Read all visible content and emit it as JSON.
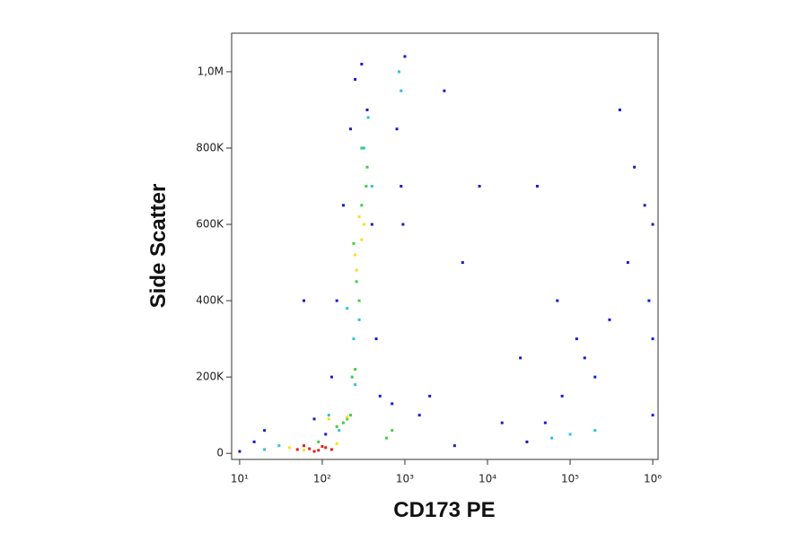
{
  "chart_data": {
    "type": "scatter",
    "x_label": "CD173 PE",
    "y_label": "Side Scatter",
    "xlog": true,
    "xlim": [
      8,
      1160000
    ],
    "ylim": [
      -16000,
      1101000
    ],
    "xticks": [
      {
        "value": 10,
        "label": "10¹"
      },
      {
        "value": 100,
        "label": "10²"
      },
      {
        "value": 1000,
        "label": "10³"
      },
      {
        "value": 10000,
        "label": "10⁴"
      },
      {
        "value": 100000,
        "label": "10⁵"
      },
      {
        "value": 1000000,
        "label": "10⁶"
      }
    ],
    "yticks": [
      0,
      {
        "value": 200000,
        "label": "200K"
      },
      {
        "value": 400000,
        "label": "400K"
      },
      {
        "value": 600000,
        "label": "600K"
      },
      {
        "value": 800000,
        "label": "800K"
      },
      {
        "value": 1000000,
        "label": "1,0M"
      }
    ],
    "series": [
      {
        "color": "#1a1ad0",
        "x": [
          150,
          180,
          220,
          350,
          400,
          450,
          500,
          130,
          110,
          80,
          250,
          300,
          800,
          900,
          1000,
          950,
          700,
          30000,
          50000,
          80000,
          150000,
          300000,
          500000,
          800000,
          40000,
          70000,
          120000,
          200000,
          400000,
          600000,
          900000,
          1000000,
          1000000,
          1000000,
          3000,
          5000,
          15000,
          25000,
          4000,
          8000,
          20,
          15,
          10,
          60,
          2000,
          1500
        ],
        "values": [
          400000,
          650000,
          850000,
          900000,
          600000,
          300000,
          150000,
          200000,
          50000,
          90000,
          980000,
          1020000,
          850000,
          700000,
          1040000,
          600000,
          130000,
          30000,
          80000,
          150000,
          250000,
          350000,
          500000,
          650000,
          700000,
          400000,
          300000,
          200000,
          900000,
          750000,
          400000,
          600000,
          300000,
          100000,
          950000,
          500000,
          80000,
          250000,
          20000,
          700000,
          60000,
          30000,
          5000,
          400000,
          150000,
          100000
        ]
      },
      {
        "color": "#30c0e0",
        "x": [
          200,
          280,
          320,
          360,
          240,
          400,
          160,
          120,
          250,
          900,
          850,
          60000,
          100000,
          200000,
          30,
          20
        ],
        "values": [
          380000,
          350000,
          800000,
          880000,
          300000,
          700000,
          60000,
          100000,
          180000,
          950000,
          1000000,
          40000,
          50000,
          60000,
          20000,
          10000
        ]
      },
      {
        "color": "#40d040",
        "x": [
          180,
          220,
          260,
          300,
          340,
          240,
          280,
          350,
          200,
          90,
          150,
          250,
          230,
          300,
          700,
          600
        ],
        "values": [
          80000,
          100000,
          450000,
          650000,
          700000,
          550000,
          400000,
          750000,
          90000,
          30000,
          70000,
          220000,
          200000,
          800000,
          60000,
          40000
        ]
      },
      {
        "color": "#f5e020",
        "x": [
          40,
          150,
          250,
          300,
          280,
          320,
          260,
          120,
          60,
          200
        ],
        "values": [
          15000,
          25000,
          520000,
          560000,
          620000,
          600000,
          480000,
          90000,
          8000,
          95000
        ]
      },
      {
        "color": "#e0201b",
        "x": [
          50,
          70,
          90,
          110,
          60,
          80,
          100,
          130
        ],
        "values": [
          10000,
          12000,
          8000,
          15000,
          20000,
          5000,
          18000,
          10000
        ]
      }
    ]
  }
}
